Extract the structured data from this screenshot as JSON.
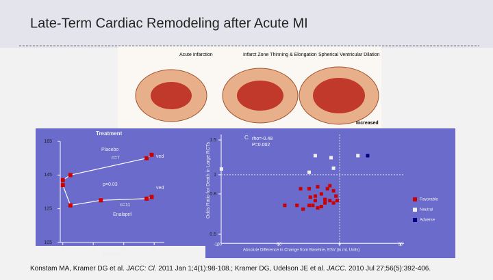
{
  "title": "Late-Term Cardiac Remodeling after Acute MI",
  "hearts": {
    "labels": [
      "Acute Infarction",
      "Infarct Zone Thinning & Elongation",
      "Spherical Ventricular Dilation"
    ],
    "note": "Increased"
  },
  "left_chart": {
    "type": "line",
    "title": "Treatment",
    "xlabel": "Months",
    "xlim": [
      -1,
      40
    ],
    "xticks": [
      0,
      12,
      24,
      36
    ],
    "ylim": [
      105,
      165
    ],
    "yticks": [
      105,
      125,
      145,
      165
    ],
    "series": [
      {
        "name": "Placebo",
        "color": "#cc0000",
        "x": [
          0,
          3,
          33,
          35
        ],
        "values": [
          142,
          145,
          155,
          157
        ]
      },
      {
        "name": "Enalapril",
        "color": "#cc0000",
        "x": [
          0,
          3,
          15,
          33,
          35
        ],
        "values": [
          139,
          127,
          130,
          131,
          132
        ]
      }
    ],
    "annotations": [
      "n=7",
      "p=0.03",
      "n=11",
      "ved",
      "ved"
    ]
  },
  "right_chart": {
    "type": "scatter",
    "panel_label": "C",
    "stats": [
      "rho=-0.48",
      "P=0.002"
    ],
    "xlabel": "Absolute Difference in Change from Baseline, ESV (in mL Units)",
    "ylabel": "Odds Ratio for Death in Large RCTs",
    "xlim": [
      -110,
      60
    ],
    "xticks": [
      -100,
      -50,
      0,
      50
    ],
    "ylim": [
      0.45,
      1.6
    ],
    "yticks": [
      0.5,
      0.8,
      1,
      1.5
    ],
    "log_y": true,
    "ref_lines": {
      "x": 0,
      "y": 1
    },
    "series": [
      {
        "name": "Favorable",
        "color": "#cc0000",
        "x": [
          -32,
          -25,
          -18,
          -10,
          -8,
          -5,
          -15,
          -3,
          -20,
          -12,
          -24,
          -8,
          -20,
          -5,
          -45,
          -35,
          -25,
          -22,
          -18,
          -15,
          -30,
          -2,
          -12
        ],
        "values": [
          0.85,
          0.85,
          0.87,
          0.85,
          0.88,
          0.83,
          0.8,
          0.78,
          0.78,
          0.75,
          0.77,
          0.74,
          0.74,
          0.72,
          0.7,
          0.7,
          0.7,
          0.7,
          0.68,
          0.69,
          0.67,
          0.74,
          0.72
        ]
      },
      {
        "name": "Neutral",
        "color": "#f0f0f0",
        "x": [
          -97,
          -20,
          -7,
          -5,
          -25,
          15
        ],
        "values": [
          1.07,
          1.25,
          1.22,
          1.08,
          1.03,
          1.25
        ]
      },
      {
        "name": "Adverse",
        "color": "#000080",
        "x": [
          23
        ],
        "values": [
          1.25
        ]
      }
    ]
  },
  "citation": [
    "Konstam MA, Kramer DG et al. ",
    "JACC: Cl.",
    " 2011 Jan 1;4(1):98-108.; Kramer DG, Udelson JE et al. ",
    "JACC.",
    " 2010 Jul 27;56(5):392-406."
  ]
}
